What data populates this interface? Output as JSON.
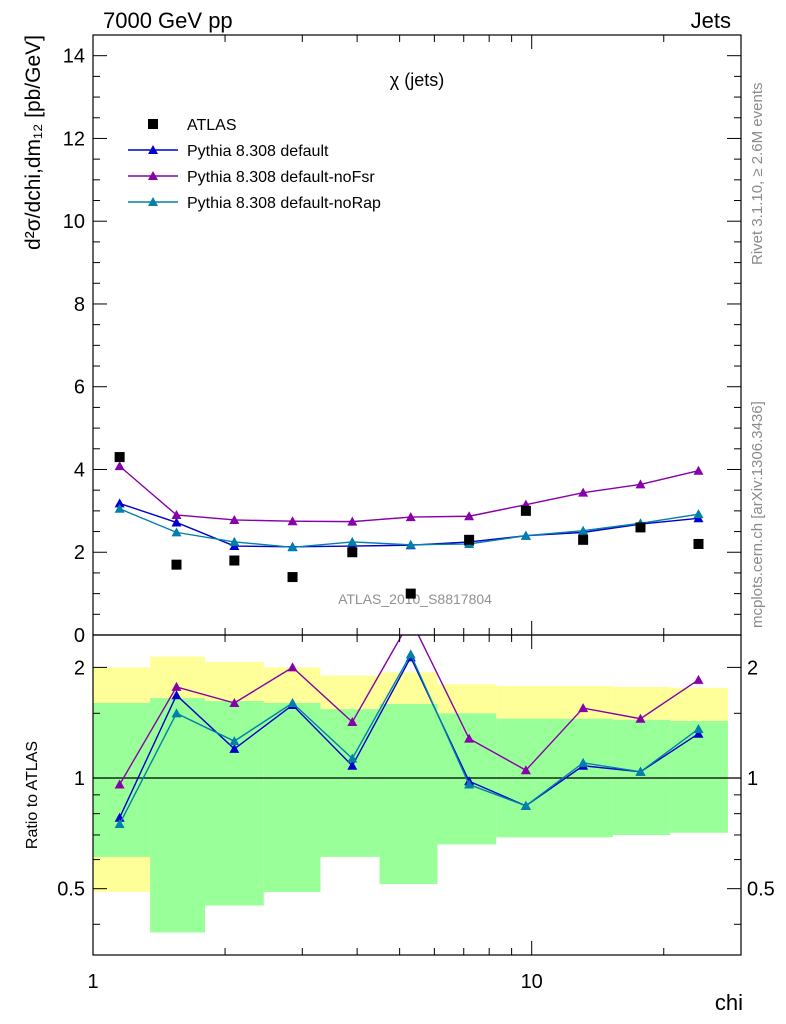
{
  "header": {
    "left": "7000 GeV pp",
    "right": "Jets"
  },
  "side_labels": {
    "rivet": "Rivet 3.1.10, ≥ 2.6M events",
    "mcplots": "mcplots.cern.ch [arXiv:1306.3436]"
  },
  "chart_data": {
    "type": "line",
    "title": "χ (jets)",
    "analysis_label": "ATLAS_2010_S8817804",
    "xlabel": "chi",
    "xscale": "log",
    "xlim": [
      1,
      30
    ],
    "x_ticks": [
      "1",
      "10"
    ],
    "x": [
      1.15,
      1.55,
      2.1,
      2.85,
      3.9,
      5.3,
      7.2,
      9.7,
      13.1,
      17.7,
      24.0
    ],
    "main_panel": {
      "ylabel": "d²σ/dchi,dm₁₂ [pb/GeV]",
      "ylim": [
        0,
        14.5
      ],
      "y_ticks": [
        "0",
        "2",
        "4",
        "6",
        "8",
        "10",
        "12",
        "14"
      ],
      "legend_position": "top-left",
      "data": {
        "name": "ATLAS",
        "values": [
          4.3,
          1.7,
          1.8,
          1.4,
          2.0,
          1.0,
          2.3,
          3.0,
          2.3,
          2.6,
          2.2
        ]
      },
      "series": [
        {
          "name": "Pythia 8.308 default",
          "color": "#0000cc",
          "values": [
            3.18,
            2.72,
            2.15,
            2.13,
            2.15,
            2.17,
            2.25,
            2.4,
            2.48,
            2.68,
            2.82
          ]
        },
        {
          "name": "Pythia 8.308 default-noFsr",
          "color": "#8800aa",
          "values": [
            4.08,
            2.9,
            2.78,
            2.75,
            2.74,
            2.85,
            2.87,
            3.15,
            3.44,
            3.64,
            3.97
          ]
        },
        {
          "name": "Pythia 8.308 default-noRap",
          "color": "#0080aa",
          "values": [
            3.05,
            2.48,
            2.25,
            2.12,
            2.25,
            2.18,
            2.2,
            2.4,
            2.52,
            2.7,
            2.92
          ]
        }
      ]
    },
    "ratio_panel": {
      "ylabel": "Ratio to ATLAS",
      "yscale": "log",
      "ylim": [
        0.33,
        2.45
      ],
      "y_ticks": [
        "0.5",
        "1",
        "2"
      ],
      "bin_edges": [
        1.0,
        1.35,
        1.8,
        2.45,
        3.3,
        4.5,
        6.1,
        8.3,
        11.3,
        15.3,
        20.7,
        28.0
      ],
      "green_band": [
        [
          0.61,
          1.6
        ],
        [
          0.38,
          1.65
        ],
        [
          0.45,
          1.62
        ],
        [
          0.49,
          1.6
        ],
        [
          0.61,
          1.54
        ],
        [
          0.515,
          1.59
        ],
        [
          0.66,
          1.5
        ],
        [
          0.69,
          1.45
        ],
        [
          0.69,
          1.45
        ],
        [
          0.7,
          1.44
        ],
        [
          0.71,
          1.43
        ]
      ],
      "yellow_band": [
        [
          0.49,
          2.0
        ],
        [
          0.38,
          2.14
        ],
        [
          0.45,
          2.07
        ],
        [
          0.49,
          2.0
        ],
        [
          0.61,
          1.9
        ],
        [
          0.515,
          1.94
        ],
        [
          0.66,
          1.8
        ],
        [
          0.69,
          1.78
        ],
        [
          0.69,
          1.78
        ],
        [
          0.7,
          1.77
        ],
        [
          0.71,
          1.76
        ]
      ],
      "series": [
        {
          "name": "Pythia 8.308 default",
          "color": "#0000cc",
          "values": [
            0.78,
            1.68,
            1.2,
            1.58,
            1.08,
            2.13,
            0.98,
            0.84,
            1.08,
            1.04,
            1.32
          ]
        },
        {
          "name": "Pythia 8.308 default-noFsr",
          "color": "#8800aa",
          "values": [
            0.96,
            1.77,
            1.6,
            2.0,
            1.42,
            2.7,
            1.28,
            1.05,
            1.55,
            1.45,
            1.85
          ]
        },
        {
          "name": "Pythia 8.308 default-noRap",
          "color": "#0080aa",
          "values": [
            0.75,
            1.5,
            1.26,
            1.6,
            1.13,
            2.17,
            0.96,
            0.84,
            1.1,
            1.04,
            1.36
          ]
        }
      ]
    }
  }
}
